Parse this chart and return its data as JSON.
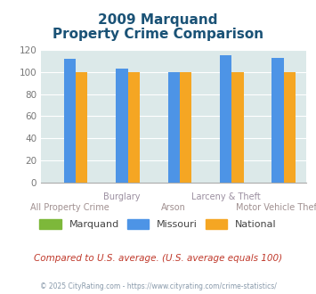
{
  "title_line1": "2009 Marquand",
  "title_line2": "Property Crime Comparison",
  "categories": [
    "All Property Crime",
    "Burglary",
    "Arson",
    "Larceny & Theft",
    "Motor Vehicle Theft"
  ],
  "marquand": [
    0,
    0,
    0,
    0,
    0
  ],
  "missouri": [
    112,
    103,
    100,
    115,
    113
  ],
  "national": [
    100,
    100,
    100,
    100,
    100
  ],
  "bar_color_marquand": "#7db83a",
  "bar_color_missouri": "#4d94e6",
  "bar_color_national": "#f5a623",
  "bg_color": "#dce9e9",
  "ylim": [
    0,
    120
  ],
  "yticks": [
    0,
    20,
    40,
    60,
    80,
    100,
    120
  ],
  "title_color": "#1a5276",
  "xlabel_color_top": "#9b8fa0",
  "xlabel_color_bot": "#a09090",
  "footnote": "Compared to U.S. average. (U.S. average equals 100)",
  "copyright": "© 2025 CityRating.com - https://www.cityrating.com/crime-statistics/",
  "title_fontsize": 11,
  "footnote_color": "#c0392b",
  "copyright_color": "#8899aa"
}
